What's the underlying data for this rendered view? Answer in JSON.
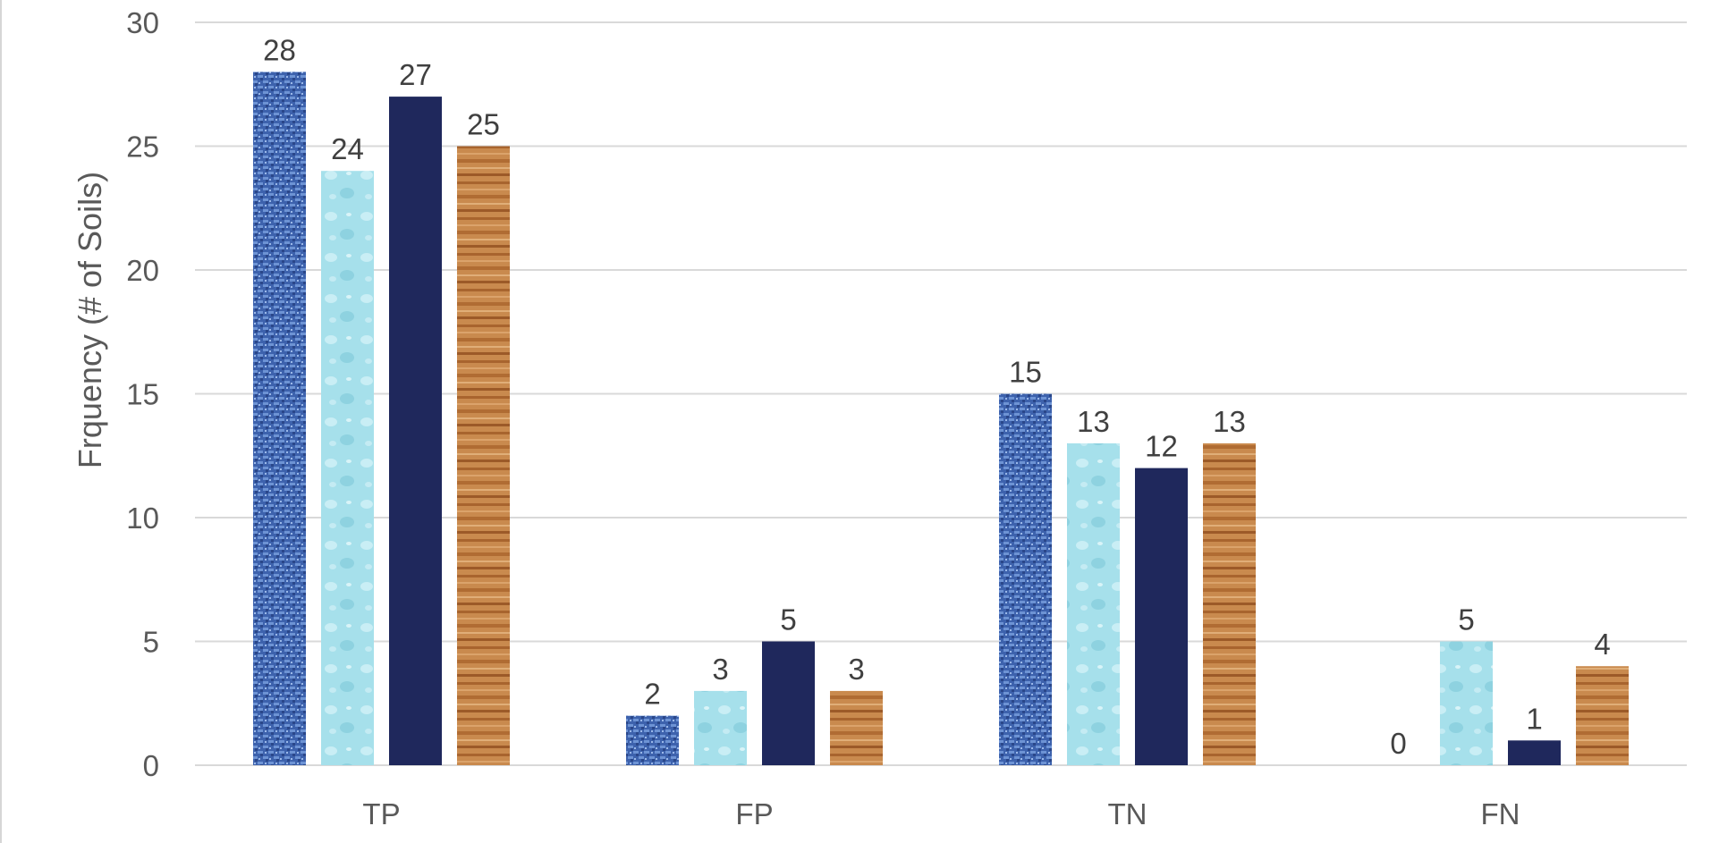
{
  "chart_data": {
    "type": "bar",
    "title": "",
    "xlabel": "",
    "ylabel": "Frquency (# of Soils)",
    "ylim": [
      0,
      30
    ],
    "yticks": [
      0,
      5,
      10,
      15,
      20,
      25,
      30
    ],
    "grid": true,
    "categories": [
      "TP",
      "FP",
      "TN",
      "FN"
    ],
    "series": [
      {
        "name": "Series 1",
        "pattern": "blue-denim",
        "values": [
          28,
          2,
          15,
          0
        ]
      },
      {
        "name": "Series 2",
        "pattern": "light-blue-drops",
        "values": [
          24,
          3,
          13,
          5
        ]
      },
      {
        "name": "Series 3",
        "pattern": "solid-navy",
        "values": [
          27,
          5,
          12,
          1
        ]
      },
      {
        "name": "Series 4",
        "pattern": "wood-grain",
        "values": [
          25,
          3,
          13,
          4
        ]
      }
    ]
  },
  "colors": {
    "denim": "#3f64b0",
    "light_blue": "#a8e2ec",
    "navy": "#1f285c",
    "wood": "#c98649",
    "grid": "#d9d9d9",
    "text": "#595959"
  }
}
